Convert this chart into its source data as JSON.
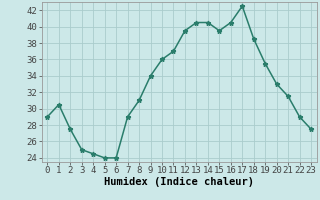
{
  "x": [
    0,
    1,
    2,
    3,
    4,
    5,
    6,
    7,
    8,
    9,
    10,
    11,
    12,
    13,
    14,
    15,
    16,
    17,
    18,
    19,
    20,
    21,
    22,
    23
  ],
  "y": [
    29,
    30.5,
    27.5,
    25,
    24.5,
    24,
    24,
    29,
    31,
    34,
    36,
    37,
    39.5,
    40.5,
    40.5,
    39.5,
    40.5,
    42.5,
    38.5,
    35.5,
    33,
    31.5,
    29,
    27.5
  ],
  "line_color": "#2a7d6b",
  "marker": "*",
  "marker_size": 3.5,
  "bg_color": "#cce8e8",
  "grid_color": "#aacccc",
  "xlabel": "Humidex (Indice chaleur)",
  "ylim": [
    23.5,
    43.0
  ],
  "yticks": [
    24,
    26,
    28,
    30,
    32,
    34,
    36,
    38,
    40,
    42
  ],
  "xticks": [
    0,
    1,
    2,
    3,
    4,
    5,
    6,
    7,
    8,
    9,
    10,
    11,
    12,
    13,
    14,
    15,
    16,
    17,
    18,
    19,
    20,
    21,
    22,
    23
  ],
  "xlabel_fontsize": 7.5,
  "tick_fontsize": 6.5,
  "line_width": 1.1
}
